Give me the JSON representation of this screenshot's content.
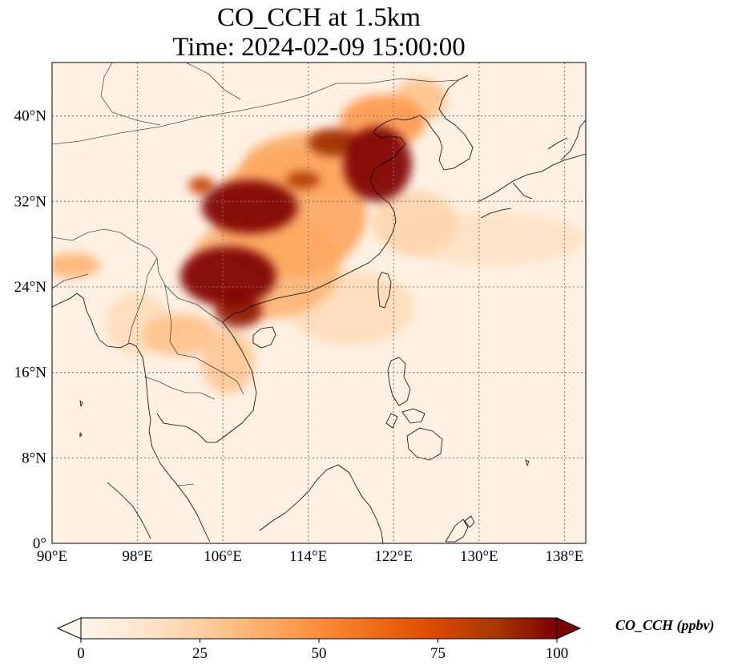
{
  "title": {
    "line1": "CO_CCH at 1.5km",
    "line2": "Time: 2024-02-09 15:00:00"
  },
  "map": {
    "lon_range": [
      90,
      140
    ],
    "lat_range": [
      0,
      45
    ],
    "lon_ticks": [
      {
        "value": 90,
        "label": "90°E"
      },
      {
        "value": 98,
        "label": "98°E"
      },
      {
        "value": 106,
        "label": "106°E"
      },
      {
        "value": 114,
        "label": "114°E"
      },
      {
        "value": 122,
        "label": "122°E"
      },
      {
        "value": 130,
        "label": "130°E"
      },
      {
        "value": 138,
        "label": "138°E"
      }
    ],
    "lat_ticks": [
      {
        "value": 0,
        "label": "0°"
      },
      {
        "value": 8,
        "label": "8°N"
      },
      {
        "value": 16,
        "label": "16°N"
      },
      {
        "value": 24,
        "label": "24°N"
      },
      {
        "value": 32,
        "label": "32°N"
      },
      {
        "value": 40,
        "label": "40°N"
      }
    ],
    "gridlines": true,
    "plumes": [
      {
        "lon": 108.5,
        "lat": 31.5,
        "rlon": 4.5,
        "rlat": 2.5,
        "value": 100
      },
      {
        "lon": 106.5,
        "lat": 25.0,
        "rlon": 4.5,
        "rlat": 2.8,
        "value": 100
      },
      {
        "lon": 107.5,
        "lat": 21.8,
        "rlon": 2.2,
        "rlat": 1.6,
        "value": 95
      },
      {
        "lon": 120.5,
        "lat": 35.5,
        "rlon": 3.2,
        "rlat": 3.5,
        "value": 100
      },
      {
        "lon": 116.5,
        "lat": 37.5,
        "rlon": 2.5,
        "rlat": 1.3,
        "value": 90
      },
      {
        "lon": 113.5,
        "lat": 34.0,
        "rlon": 1.6,
        "rlat": 0.8,
        "value": 85
      },
      {
        "lon": 104.0,
        "lat": 33.5,
        "rlon": 1.2,
        "rlat": 0.8,
        "value": 80
      },
      {
        "lon": 112.5,
        "lat": 31.0,
        "rlon": 7.0,
        "rlat": 6.0,
        "value": 40
      },
      {
        "lon": 110.0,
        "lat": 26.0,
        "rlon": 7.0,
        "rlat": 5.0,
        "value": 35
      },
      {
        "lon": 115.0,
        "lat": 35.5,
        "rlon": 7.0,
        "rlat": 3.0,
        "value": 38
      },
      {
        "lon": 121.0,
        "lat": 39.5,
        "rlon": 4.0,
        "rlat": 2.5,
        "value": 45
      },
      {
        "lon": 124.5,
        "lat": 41.5,
        "rlon": 2.5,
        "rlat": 2.0,
        "value": 30
      },
      {
        "lon": 98.0,
        "lat": 20.5,
        "rlon": 3.0,
        "rlat": 3.0,
        "value": 18
      },
      {
        "lon": 102.0,
        "lat": 19.5,
        "rlon": 3.5,
        "rlat": 2.0,
        "value": 30
      },
      {
        "lon": 106.5,
        "lat": 17.0,
        "rlon": 2.5,
        "rlat": 3.0,
        "value": 28
      },
      {
        "lon": 92.0,
        "lat": 26.0,
        "rlon": 2.5,
        "rlat": 1.2,
        "value": 35
      },
      {
        "lon": 118.0,
        "lat": 22.0,
        "rlon": 6.0,
        "rlat": 3.5,
        "value": 18
      },
      {
        "lon": 131.0,
        "lat": 28.5,
        "rlon": 9.0,
        "rlat": 2.5,
        "value": 15
      },
      {
        "lon": 124.0,
        "lat": 30.0,
        "rlon": 4.0,
        "rlat": 3.0,
        "value": 22
      }
    ]
  },
  "colorbar": {
    "label": "CO_CCH (ppbv)",
    "min": 0,
    "max": 100,
    "extend": "both",
    "ticks": [
      {
        "value": 0,
        "label": "0"
      },
      {
        "value": 25,
        "label": "25"
      },
      {
        "value": 50,
        "label": "50"
      },
      {
        "value": 75,
        "label": "75"
      },
      {
        "value": 100,
        "label": "100"
      }
    ],
    "colormap": [
      "#fff5eb",
      "#fee6ce",
      "#fdd0a2",
      "#fdae6b",
      "#fd8d3c",
      "#f16913",
      "#d94801",
      "#a63603",
      "#7f0000"
    ]
  }
}
